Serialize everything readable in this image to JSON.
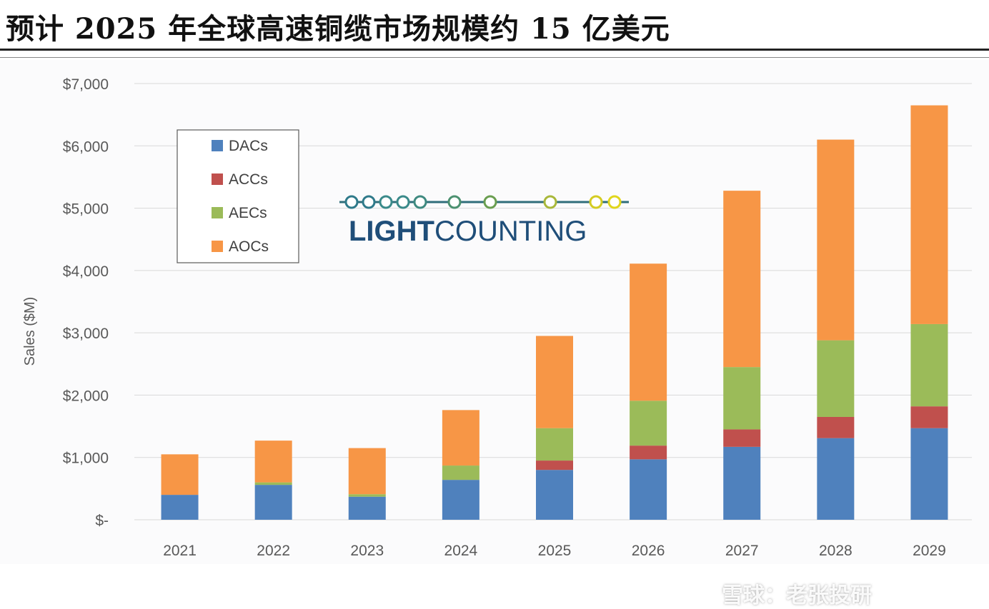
{
  "page": {
    "title": "预计 2025 年全球高速铜缆市场规模约 15 亿美元"
  },
  "chart_data": {
    "type": "bar",
    "stacked": true,
    "title": "",
    "xlabel": "",
    "ylabel": "Sales ($M)",
    "ylim": [
      0,
      7000
    ],
    "categories": [
      "2021",
      "2022",
      "2023",
      "2024",
      "2025",
      "2026",
      "2027",
      "2028",
      "2029"
    ],
    "y_ticks": [
      {
        "value": 0,
        "label": "$-"
      },
      {
        "value": 1000,
        "label": "$1,000"
      },
      {
        "value": 2000,
        "label": "$2,000"
      },
      {
        "value": 3000,
        "label": "$3,000"
      },
      {
        "value": 4000,
        "label": "$4,000"
      },
      {
        "value": 5000,
        "label": "$5,000"
      },
      {
        "value": 6000,
        "label": "$6,000"
      },
      {
        "value": 7000,
        "label": "$7,000"
      }
    ],
    "grid": true,
    "legend_position": "top-left",
    "series": [
      {
        "name": "DACs",
        "color": "#4f81bd",
        "values": [
          400,
          560,
          370,
          640,
          800,
          970,
          1170,
          1310,
          1470
        ]
      },
      {
        "name": "ACCs",
        "color": "#c0504d",
        "values": [
          0,
          0,
          0,
          0,
          150,
          220,
          280,
          340,
          350
        ]
      },
      {
        "name": "AECs",
        "color": "#9bbb59",
        "values": [
          0,
          40,
          40,
          230,
          520,
          720,
          1000,
          1230,
          1320
        ]
      },
      {
        "name": "AOCs",
        "color": "#f79646",
        "values": [
          650,
          670,
          740,
          890,
          1480,
          2200,
          2830,
          3220,
          3510
        ]
      }
    ],
    "logo": {
      "text_bold": "LIGHT",
      "text_light": "COUNTING",
      "color": "#1f4e79",
      "line_color": "#2f6e7a"
    }
  },
  "watermark": {
    "text": "雪球：老张投研"
  }
}
